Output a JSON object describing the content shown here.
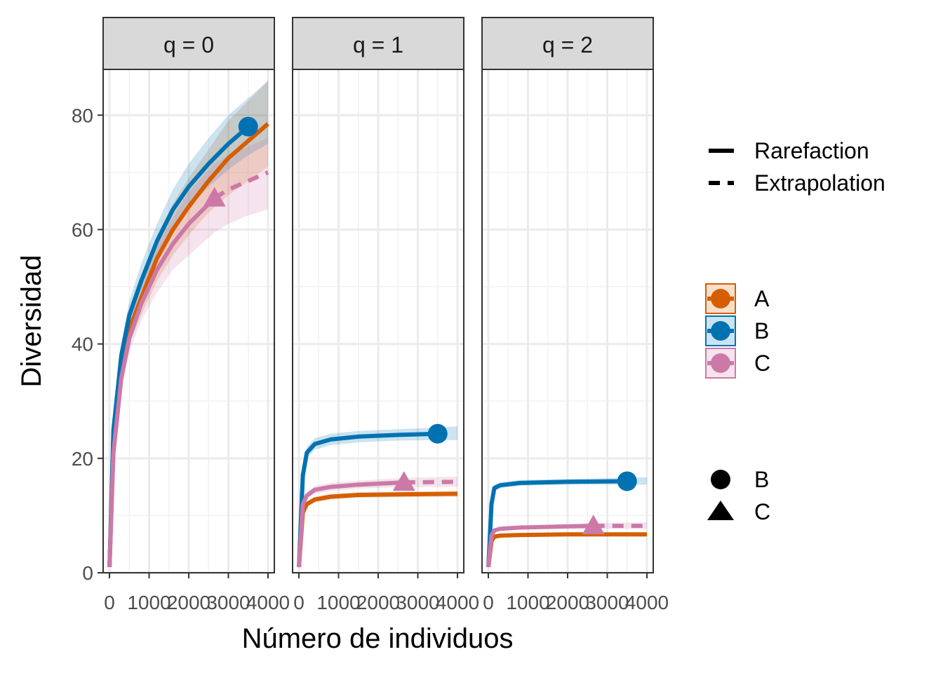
{
  "chart_data": {
    "type": "line",
    "xlabel": "Número de individuos",
    "ylabel": "Diversidad",
    "xlim": [
      0,
      4000
    ],
    "ylim": [
      0,
      88
    ],
    "x_ticks": [
      0,
      1000,
      2000,
      3000,
      4000
    ],
    "x_tick_labels": [
      "0",
      "1000",
      "2000",
      "3000",
      "4000"
    ],
    "y_ticks": [
      0,
      20,
      40,
      60,
      80
    ],
    "y_tick_labels": [
      "0",
      "20",
      "40",
      "60",
      "80"
    ],
    "grid": true,
    "colors": {
      "A": "#d55e00",
      "B": "#0072b2",
      "C": "#cc79a7"
    },
    "legend": {
      "placement": "right",
      "method": [
        {
          "label": "Rarefaction",
          "linetype": "solid"
        },
        {
          "label": "Extrapolation",
          "linetype": "dashed"
        }
      ],
      "assemblage": [
        {
          "label": "A",
          "color": "#d55e00"
        },
        {
          "label": "B",
          "color": "#0072b2"
        },
        {
          "label": "C",
          "color": "#cc79a7"
        }
      ],
      "shape": [
        {
          "label": "B",
          "shape": "circle"
        },
        {
          "label": "C",
          "shape": "triangle"
        }
      ]
    },
    "facets": [
      {
        "label": "q = 0",
        "series": [
          {
            "name": "A",
            "observed_x": 4000,
            "observed_y": 78.5,
            "x": [
              1,
              100,
              300,
              500,
              800,
              1200,
              1600,
              2000,
              2500,
              3000,
              3500,
              4000
            ],
            "y": [
              1,
              22,
              36,
              42.5,
              48,
              55,
              60,
              64,
              68.5,
              72.5,
              75.5,
              78.5
            ],
            "lower": [
              1,
              20,
              34,
              40,
              45,
              51,
              55.5,
              59,
              63,
              66,
              68.5,
              71
            ],
            "upper": [
              1,
              24,
              38,
              45,
              51,
              59,
              64.5,
              69,
              74,
              79,
              82.5,
              86
            ]
          },
          {
            "name": "B",
            "observed_x": 3500,
            "observed_y": 78,
            "x": [
              1,
              100,
              300,
              500,
              800,
              1200,
              1600,
              2000,
              2500,
              3000,
              3500,
              4000
            ],
            "y": [
              1,
              25,
              38,
              45,
              51,
              58,
              63.5,
              67.5,
              71.5,
              75,
              78,
              80.5
            ],
            "lower": [
              1,
              23,
              36,
              42.5,
              48.5,
              55,
              60,
              64,
              67.5,
              70.5,
              73,
              75
            ],
            "upper": [
              1,
              27,
              40,
              47.5,
              54,
              61,
              67,
              71.5,
              76,
              80,
              83,
              86
            ]
          },
          {
            "name": "C",
            "observed_x": 2650,
            "observed_y": 65.5,
            "extrapolated_to": 4000,
            "x": [
              1,
              100,
              300,
              500,
              800,
              1200,
              1600,
              2000,
              2650,
              3000,
              3500,
              4000
            ],
            "y": [
              1,
              21,
              34,
              41,
              47,
              53,
              57.5,
              61,
              65.5,
              67,
              68.5,
              70
            ],
            "lower": [
              1,
              19,
              32,
              38.5,
              44,
              49,
              53,
              55.5,
              59.5,
              61,
              62.5,
              63.5
            ],
            "upper": [
              1,
              23,
              36,
              43.5,
              50,
              57,
              62,
              66.5,
              71.5,
              73,
              74.5,
              76
            ]
          }
        ]
      },
      {
        "label": "q = 1",
        "series": [
          {
            "name": "A",
            "observed_x": 4000,
            "observed_y": 13.8,
            "x": [
              1,
              100,
              200,
              400,
              800,
              1500,
              2500,
              4000
            ],
            "y": [
              1,
              10.5,
              12,
              12.8,
              13.3,
              13.6,
              13.7,
              13.8
            ],
            "lower": [
              1,
              10,
              11.5,
              12.3,
              12.8,
              13.1,
              13.2,
              13.3
            ],
            "upper": [
              1,
              11,
              12.5,
              13.3,
              13.8,
              14.1,
              14.2,
              14.3
            ]
          },
          {
            "name": "B",
            "observed_x": 3500,
            "observed_y": 24.3,
            "x": [
              1,
              100,
              200,
              400,
              800,
              1500,
              2500,
              3500,
              4000
            ],
            "y": [
              1,
              17,
              21,
              22.5,
              23.3,
              23.8,
              24.1,
              24.3,
              24.4
            ],
            "lower": [
              1,
              16,
              20,
              21.5,
              22.3,
              22.8,
              23.1,
              23.2,
              23.2
            ],
            "upper": [
              1,
              18,
              22,
              23.5,
              24.3,
              24.8,
              25.1,
              25.4,
              25.6
            ]
          },
          {
            "name": "C",
            "observed_x": 2650,
            "observed_y": 15.8,
            "extrapolated_to": 4000,
            "x": [
              1,
              100,
              200,
              400,
              800,
              1500,
              2650,
              4000
            ],
            "y": [
              1,
              12,
              13.5,
              14.5,
              15,
              15.4,
              15.8,
              15.9
            ],
            "lower": [
              1,
              11.5,
              13,
              13.8,
              14.3,
              14.7,
              15,
              15
            ],
            "upper": [
              1,
              12.5,
              14,
              15.2,
              15.7,
              16.1,
              16.6,
              16.8
            ]
          }
        ]
      },
      {
        "label": "q = 2",
        "series": [
          {
            "name": "A",
            "observed_x": 4000,
            "observed_y": 6.7,
            "x": [
              1,
              80,
              150,
              300,
              800,
              2000,
              4000
            ],
            "y": [
              1,
              5.5,
              6.3,
              6.5,
              6.6,
              6.7,
              6.7
            ],
            "lower": [
              1,
              5.2,
              6,
              6.2,
              6.3,
              6.4,
              6.4
            ],
            "upper": [
              1,
              5.8,
              6.6,
              6.8,
              6.9,
              7,
              7
            ]
          },
          {
            "name": "B",
            "observed_x": 3500,
            "observed_y": 16,
            "x": [
              1,
              80,
              150,
              300,
              800,
              2000,
              3500,
              4000
            ],
            "y": [
              1,
              12,
              14.8,
              15.3,
              15.7,
              15.9,
              16,
              16
            ],
            "lower": [
              1,
              11.5,
              14.2,
              14.8,
              15.2,
              15.4,
              15.4,
              15.4
            ],
            "upper": [
              1,
              12.5,
              15.4,
              15.8,
              16.2,
              16.4,
              16.6,
              16.7
            ]
          },
          {
            "name": "C",
            "observed_x": 2650,
            "observed_y": 8.2,
            "extrapolated_to": 4000,
            "x": [
              1,
              80,
              150,
              300,
              800,
              2000,
              2650,
              4000
            ],
            "y": [
              1,
              6.5,
              7.4,
              7.7,
              7.9,
              8.1,
              8.2,
              8.2
            ],
            "lower": [
              1,
              6.2,
              7.1,
              7.4,
              7.6,
              7.7,
              7.7,
              7.7
            ],
            "upper": [
              1,
              6.8,
              7.7,
              8,
              8.2,
              8.5,
              8.7,
              8.8
            ]
          }
        ]
      }
    ]
  }
}
